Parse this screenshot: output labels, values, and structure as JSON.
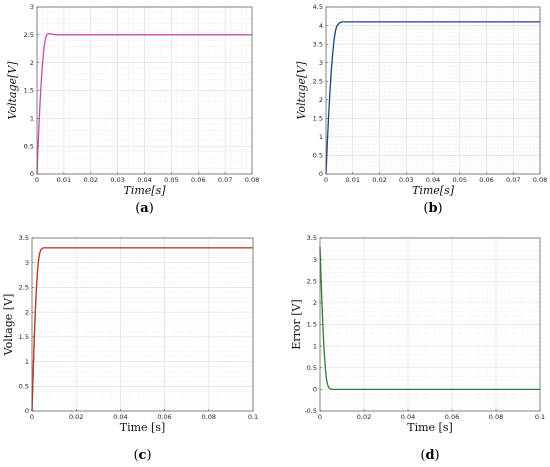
{
  "chart_data": [
    {
      "type": "line",
      "caption": "(a)",
      "caption_letter": "a",
      "xlabel": "Time[s]",
      "ylabel": "Voltage[V]",
      "label_style": "italic",
      "xlim": [
        0,
        0.08
      ],
      "ylim": [
        0,
        3
      ],
      "xticks": [
        0,
        0.01,
        0.02,
        0.03,
        0.04,
        0.05,
        0.06,
        0.07,
        0.08
      ],
      "xtick_labels": [
        "0",
        "0.01",
        "0.02",
        "0.03",
        "0.04",
        "0.05",
        "0.06",
        "0.07",
        "0.08"
      ],
      "yticks": [
        0,
        0.5,
        1,
        1.5,
        2,
        2.5,
        3
      ],
      "ytick_labels": [
        "0",
        "0.5",
        "1",
        "1.5",
        "2",
        "2.5",
        "3"
      ],
      "grid": true,
      "series": [
        {
          "color": "#c44ea6",
          "x": [
            0,
            0.0005,
            0.001,
            0.0015,
            0.002,
            0.0025,
            0.003,
            0.0035,
            0.004,
            0.005,
            0.006,
            0.007,
            0.008,
            0.01,
            0.012,
            0.015,
            0.02,
            0.03,
            0.04,
            0.05,
            0.06,
            0.07,
            0.08
          ],
          "y": [
            0,
            0.62,
            1.15,
            1.6,
            1.95,
            2.22,
            2.4,
            2.49,
            2.52,
            2.52,
            2.51,
            2.5,
            2.5,
            2.5,
            2.5,
            2.5,
            2.5,
            2.5,
            2.5,
            2.5,
            2.5,
            2.5,
            2.5
          ]
        }
      ]
    },
    {
      "type": "line",
      "caption": "(b)",
      "caption_letter": "b",
      "xlabel": "Time[s]",
      "ylabel": "Voltage[V]",
      "label_style": "italic",
      "xlim": [
        0,
        0.08
      ],
      "ylim": [
        0,
        4.5
      ],
      "xticks": [
        0,
        0.01,
        0.02,
        0.03,
        0.04,
        0.05,
        0.06,
        0.07,
        0.08
      ],
      "xtick_labels": [
        "0",
        "0.01",
        "0.02",
        "0.03",
        "0.04",
        "0.05",
        "0.06",
        "0.07",
        "0.08"
      ],
      "yticks": [
        0,
        0.5,
        1,
        1.5,
        2,
        2.5,
        3,
        3.5,
        4,
        4.5
      ],
      "ytick_labels": [
        "0",
        "0.5",
        "1",
        "1.5",
        "2",
        "2.5",
        "3",
        "3.5",
        "4",
        "4.5"
      ],
      "grid": true,
      "series": [
        {
          "color": "#1f3f8a",
          "x": [
            0,
            0.0005,
            0.001,
            0.0015,
            0.002,
            0.0025,
            0.003,
            0.0035,
            0.004,
            0.005,
            0.006,
            0.007,
            0.008,
            0.01,
            0.015,
            0.02,
            0.03,
            0.04,
            0.05,
            0.06,
            0.07,
            0.08
          ],
          "y": [
            0,
            0.85,
            1.6,
            2.25,
            2.8,
            3.25,
            3.6,
            3.85,
            3.98,
            4.07,
            4.1,
            4.1,
            4.1,
            4.1,
            4.1,
            4.1,
            4.1,
            4.1,
            4.1,
            4.1,
            4.1,
            4.1
          ]
        }
      ]
    },
    {
      "type": "line",
      "caption": "(c)",
      "caption_letter": "c",
      "xlabel": "Time [s]",
      "ylabel": "Voltage [V]",
      "label_style": "upright",
      "xlim": [
        0,
        0.1
      ],
      "ylim": [
        0,
        3.5
      ],
      "xticks": [
        0,
        0.02,
        0.04,
        0.06,
        0.08,
        0.1
      ],
      "xtick_labels": [
        "0",
        "0.02",
        "0.04",
        "0.06",
        "0.08",
        "0.1"
      ],
      "yticks": [
        0,
        0.5,
        1,
        1.5,
        2,
        2.5,
        3,
        3.5
      ],
      "ytick_labels": [
        "0",
        "0.5",
        "1",
        "1.5",
        "2",
        "2.5",
        "3",
        "3.5"
      ],
      "grid": true,
      "series": [
        {
          "color": "#7a9a1a",
          "x": [
            0,
            0.0005,
            0.001,
            0.0015,
            0.002,
            0.0025,
            0.003,
            0.0035,
            0.004,
            0.005,
            0.006,
            0.008,
            0.01,
            0.02,
            0.04,
            0.06,
            0.08,
            0.1
          ],
          "y": [
            0,
            0.75,
            1.45,
            2.05,
            2.5,
            2.85,
            3.08,
            3.2,
            3.26,
            3.3,
            3.3,
            3.3,
            3.3,
            3.3,
            3.3,
            3.3,
            3.3,
            3.3
          ]
        },
        {
          "color": "#c0392b",
          "x": [
            0,
            0.0005,
            0.001,
            0.0015,
            0.002,
            0.0025,
            0.003,
            0.0035,
            0.004,
            0.005,
            0.006,
            0.008,
            0.01,
            0.02,
            0.04,
            0.06,
            0.08,
            0.1
          ],
          "y": [
            0,
            0.72,
            1.4,
            2.0,
            2.46,
            2.82,
            3.06,
            3.19,
            3.26,
            3.3,
            3.3,
            3.3,
            3.3,
            3.3,
            3.3,
            3.3,
            3.3,
            3.3
          ]
        }
      ]
    },
    {
      "type": "line",
      "caption": "(d)",
      "caption_letter": "d",
      "xlabel": "Time [s]",
      "ylabel": "Error [V]",
      "label_style": "upright",
      "xlim": [
        0,
        0.1
      ],
      "ylim": [
        -0.5,
        3.5
      ],
      "xticks": [
        0,
        0.02,
        0.04,
        0.06,
        0.08,
        0.1
      ],
      "xtick_labels": [
        "0",
        "0.02",
        "0.04",
        "0.06",
        "0.08",
        "0.1"
      ],
      "yticks": [
        -0.5,
        0,
        0.5,
        1,
        1.5,
        2,
        2.5,
        3,
        3.5
      ],
      "ytick_labels": [
        "-0.5",
        "0",
        "0.5",
        "1",
        "1.5",
        "2",
        "2.5",
        "3",
        "3.5"
      ],
      "grid": true,
      "series": [
        {
          "color": "#2e7d32",
          "x": [
            0,
            0.0005,
            0.001,
            0.0015,
            0.002,
            0.0025,
            0.003,
            0.0035,
            0.004,
            0.005,
            0.006,
            0.008,
            0.01,
            0.02,
            0.04,
            0.06,
            0.08,
            0.1
          ],
          "y": [
            3.3,
            2.55,
            1.85,
            1.25,
            0.8,
            0.45,
            0.22,
            0.1,
            0.04,
            0.0,
            0.0,
            0.0,
            0.0,
            0.0,
            0.0,
            0.0,
            0.0,
            0.0
          ]
        }
      ]
    }
  ]
}
